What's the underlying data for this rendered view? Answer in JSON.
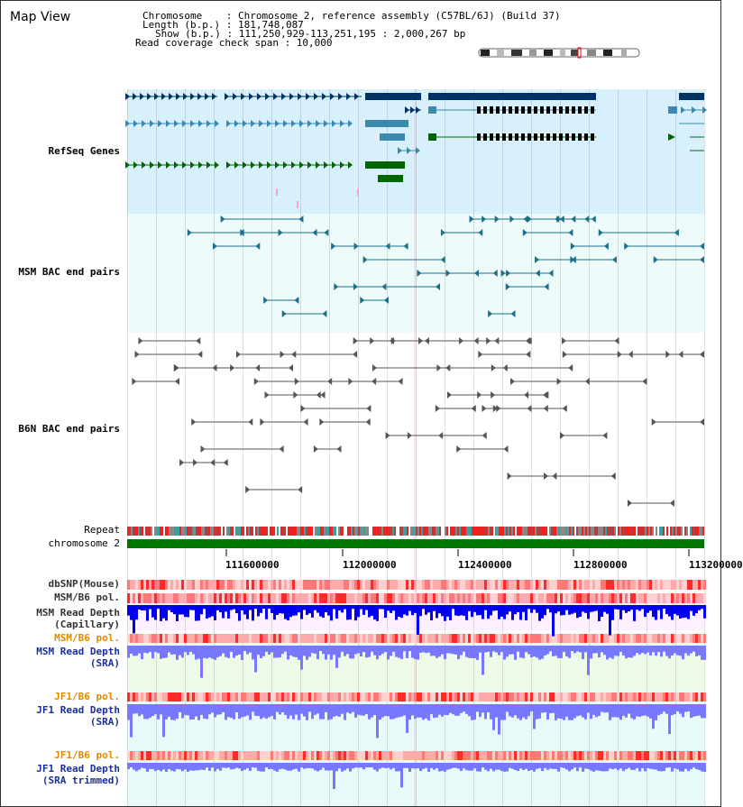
{
  "header": {
    "view_title": "Map View",
    "chromosome_line": "Chromosome    : Chromosome 2, reference assembly (C57BL/6J) (Build 37)",
    "length_line": "Length (b.p.) : 181,748,087",
    "show_line": "Show (b.p.) : 111,250,929-113,251,195 : 2,000,267 bp",
    "coverage_line": "Read coverage check span : 10,000"
  },
  "tracks": {
    "refseq": {
      "label": "RefSeq Genes",
      "color": "#1a2f9a"
    },
    "msm_bac": {
      "label": "MSM BAC end pairs",
      "color": "#2a7a8a"
    },
    "b6n_bac": {
      "label": "B6N BAC end pairs",
      "color": "#333333"
    },
    "repeat": {
      "label": "Repeat"
    },
    "chromosome": {
      "label": "chromosome 2"
    },
    "dbsnp": {
      "label": "dbSNP(Mouse)"
    },
    "msm_b6_pol_1": {
      "label": "MSM/B6 pol."
    },
    "msm_depth_cap": {
      "label_1": "MSM Read Depth",
      "label_2": "(Capillary)"
    },
    "msm_b6_pol_2": {
      "label": "MSM/B6 pol.",
      "color": "#e08a00"
    },
    "msm_depth_sra": {
      "label_1": "MSM Read Depth",
      "label_2": "(SRA)",
      "color": "#1a2f9a"
    },
    "jf1_b6_pol_1": {
      "label": "JF1/B6 pol.",
      "color": "#e08a00"
    },
    "jf1_depth_sra": {
      "label_1": "JF1 Read Depth",
      "label_2": "(SRA)",
      "color": "#1a2f9a"
    },
    "jf1_b6_pol_2": {
      "label": "JF1/B6 pol.",
      "color": "#e08a00"
    },
    "jf1_depth_trim": {
      "label_1": "JF1 Read Depth",
      "label_2": "(SRA trimmed)",
      "color": "#1a2f9a"
    }
  },
  "axis": {
    "ticks": [
      "111600000",
      "112000000",
      "112400000",
      "112800000",
      "113200000"
    ]
  },
  "colors": {
    "refseq_bg": "#d8f0fb",
    "bac_bg": "#eefbfb",
    "gene_dark": "#003366",
    "gene_mid": "#3a8ab0",
    "gene_green": "#006600",
    "msm_bac": "#1f6f8a",
    "b6n_bac": "#555555",
    "chromosome_bar": "#007700",
    "depth_blue": "#0000ee",
    "depth_light": "#7777ff",
    "pol_red": "#ff3333",
    "pol_pink": "#ffb0b0"
  }
}
